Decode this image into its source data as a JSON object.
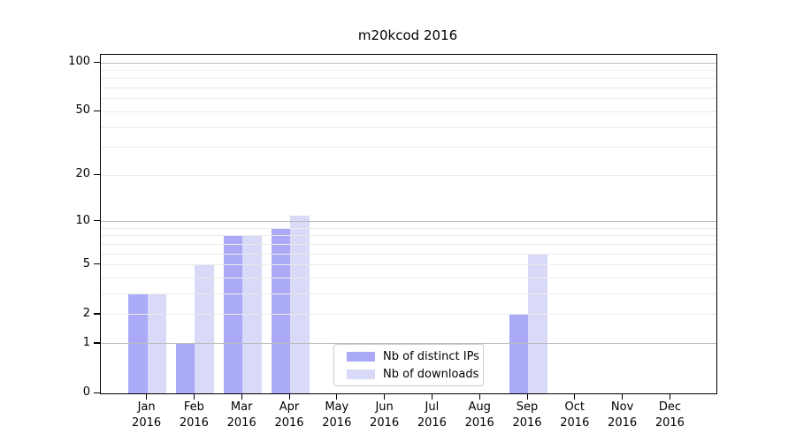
{
  "title": "m20kcod 2016",
  "chart_data": {
    "type": "bar",
    "title": "m20kcod 2016",
    "categories": [
      "Jan",
      "Feb",
      "Mar",
      "Apr",
      "May",
      "Jun",
      "Jul",
      "Aug",
      "Sep",
      "Oct",
      "Nov",
      "Dec"
    ],
    "category_year": "2016",
    "series": [
      {
        "name": "Nb of distinct IPs",
        "color": "#aaaaf8",
        "values": [
          3,
          1,
          8,
          9,
          0,
          0,
          0,
          0,
          2,
          0,
          0,
          0
        ]
      },
      {
        "name": "Nb of downloads",
        "color": "#d9d9f8",
        "values": [
          3,
          5,
          8,
          11,
          0,
          0,
          0,
          0,
          6,
          0,
          0,
          0
        ]
      }
    ],
    "y_axis": {
      "scale": "log1p",
      "tick_labels": [
        "100",
        "50",
        "20",
        "10",
        "5",
        "2",
        "1",
        "0"
      ],
      "tick_values": [
        100,
        50,
        20,
        10,
        5,
        2,
        1,
        0
      ],
      "range": [
        0,
        110
      ],
      "gridlines_major": [
        100,
        10,
        1
      ],
      "gridlines_minor": [
        2,
        3,
        4,
        5,
        6,
        7,
        8,
        9,
        20,
        30,
        40,
        50,
        60,
        70,
        80,
        90
      ]
    },
    "legend_position": "lower center",
    "grid": "horizontal"
  },
  "colors": {
    "bar_dark": "#aaaaf8",
    "bar_light": "#d9d9f8",
    "grid_major": "#bbbbbb",
    "grid_minor": "#ebebeb",
    "axis": "#000000",
    "legend_border": "#cccccc",
    "background": "#ffffff"
  }
}
